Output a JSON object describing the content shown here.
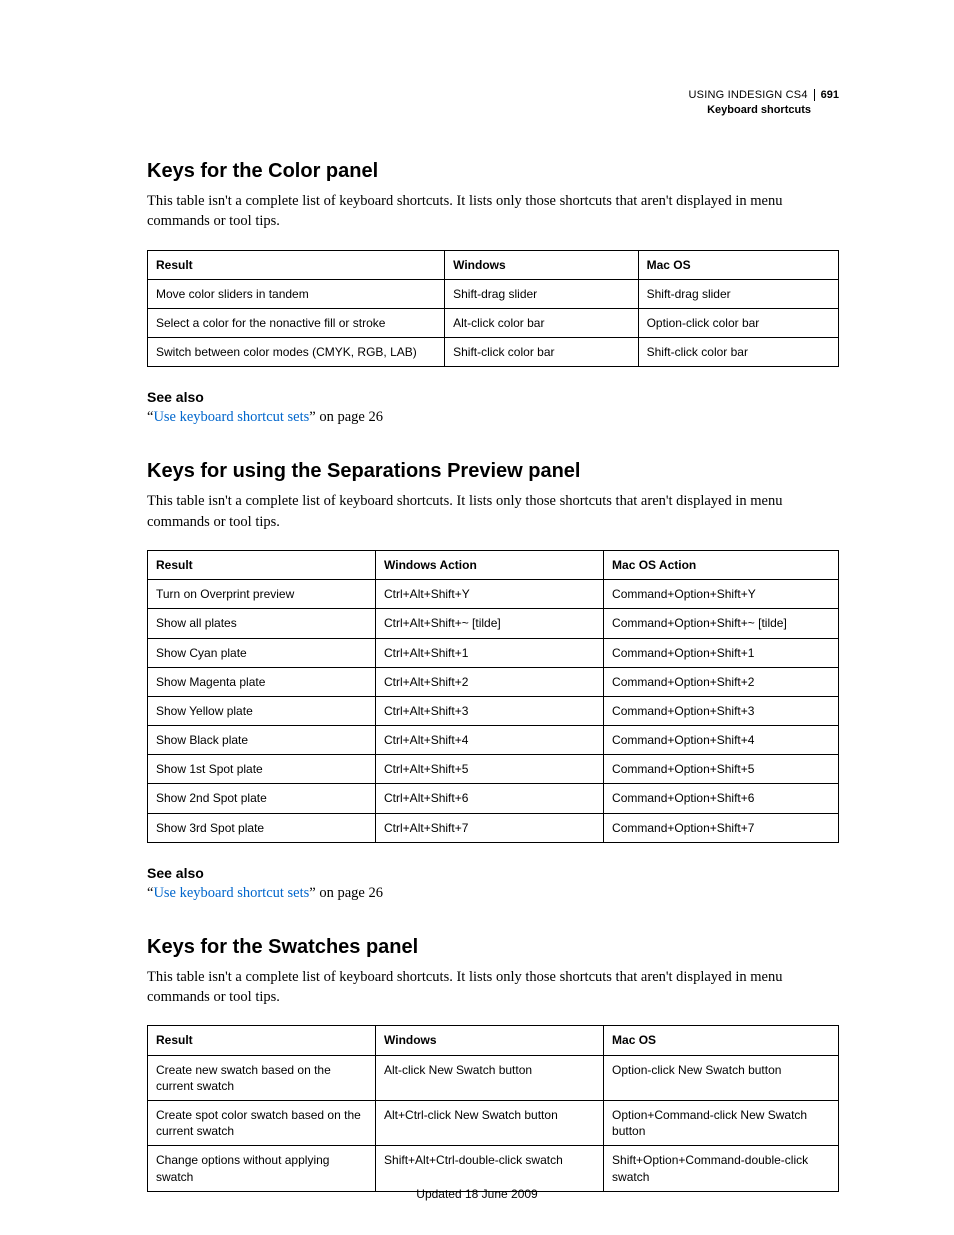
{
  "header": {
    "doc_title": "USING INDESIGN CS4",
    "page_number": "691",
    "section": "Keyboard shortcuts"
  },
  "sections": [
    {
      "heading": "Keys for the Color panel",
      "intro": "This table isn't a complete list of keyboard shortcuts. It lists only those shortcuts that aren't displayed in menu commands or tool tips.",
      "columns": [
        "Result",
        "Windows",
        "Mac OS"
      ],
      "col_widths": [
        "43%",
        "28%",
        "29%"
      ],
      "rows": [
        [
          "Move color sliders in tandem",
          "Shift-drag slider",
          "Shift-drag slider"
        ],
        [
          "Select a color for the nonactive fill or stroke",
          "Alt-click color bar",
          "Option-click color bar"
        ],
        [
          "Switch between color modes (CMYK, RGB, LAB)",
          "Shift-click color bar",
          "Shift-click color bar"
        ]
      ],
      "see_also": {
        "heading": "See also",
        "quote_open": "“",
        "link_text": "Use keyboard shortcut sets",
        "suffix": "” on page 26"
      }
    },
    {
      "heading": "Keys for using the Separations Preview panel",
      "intro": "This table isn't a complete list of keyboard shortcuts. It lists only those shortcuts that aren't displayed in menu commands or tool tips.",
      "columns": [
        "Result",
        "Windows Action",
        "Mac OS Action"
      ],
      "col_widths": [
        "33%",
        "33%",
        "34%"
      ],
      "rows": [
        [
          "Turn on Overprint preview",
          "Ctrl+Alt+Shift+Y",
          "Command+Option+Shift+Y"
        ],
        [
          "Show all plates",
          "Ctrl+Alt+Shift+~ [tilde]",
          "Command+Option+Shift+~ [tilde]"
        ],
        [
          "Show Cyan plate",
          "Ctrl+Alt+Shift+1",
          "Command+Option+Shift+1"
        ],
        [
          "Show Magenta plate",
          "Ctrl+Alt+Shift+2",
          "Command+Option+Shift+2"
        ],
        [
          "Show Yellow plate",
          "Ctrl+Alt+Shift+3",
          "Command+Option+Shift+3"
        ],
        [
          "Show Black plate",
          "Ctrl+Alt+Shift+4",
          "Command+Option+Shift+4"
        ],
        [
          "Show 1st Spot plate",
          "Ctrl+Alt+Shift+5",
          "Command+Option+Shift+5"
        ],
        [
          "Show 2nd Spot plate",
          "Ctrl+Alt+Shift+6",
          "Command+Option+Shift+6"
        ],
        [
          "Show 3rd Spot plate",
          "Ctrl+Alt+Shift+7",
          "Command+Option+Shift+7"
        ]
      ],
      "see_also": {
        "heading": "See also",
        "quote_open": "“",
        "link_text": "Use keyboard shortcut sets",
        "suffix": "” on page 26"
      }
    },
    {
      "heading": "Keys for the Swatches panel",
      "intro": "This table isn't a complete list of keyboard shortcuts. It lists only those shortcuts that aren't displayed in menu commands or tool tips.",
      "columns": [
        "Result",
        "Windows",
        "Mac OS"
      ],
      "col_widths": [
        "33%",
        "33%",
        "34%"
      ],
      "rows": [
        [
          "Create new swatch based on the current swatch",
          "Alt-click New Swatch button",
          "Option-click New Swatch button"
        ],
        [
          "Create spot color swatch based on the current swatch",
          "Alt+Ctrl-click New Swatch button",
          "Option+Command-click New Swatch button"
        ],
        [
          "Change options without applying swatch",
          "Shift+Alt+Ctrl-double-click swatch",
          "Shift+Option+Command-double-click swatch"
        ]
      ],
      "see_also": null
    }
  ],
  "footer": {
    "updated": "Updated 18 June 2009"
  },
  "colors": {
    "link": "#0066cc",
    "text": "#000000",
    "border": "#000000",
    "background": "#ffffff"
  }
}
